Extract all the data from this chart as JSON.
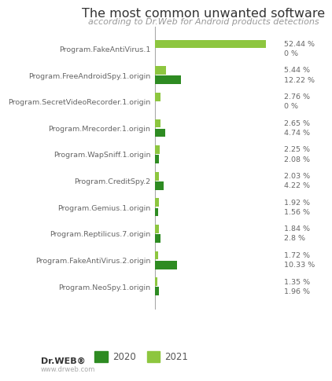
{
  "title": "The most common unwanted software",
  "subtitle": "according to Dr.Web for Android products detections",
  "categories": [
    "Program.FakeAntiVirus.1",
    "Program.FreeAndroidSpy.1.origin",
    "Program.SecretVideoRecorder.1.origin",
    "Program.Mrecorder.1.origin",
    "Program.WapSniff.1.origin",
    "Program.CreditSpy.2",
    "Program.Gemius.1.origin",
    "Program.Reptilicus.7.origin",
    "Program.FakeAntiVirus.2.origin",
    "Program.NeoSpy.1.origin"
  ],
  "values_2020": [
    0.0,
    12.22,
    0.0,
    4.74,
    2.08,
    4.22,
    1.56,
    2.8,
    10.33,
    1.96
  ],
  "values_2021": [
    52.44,
    5.44,
    2.76,
    2.65,
    2.25,
    2.03,
    1.92,
    1.84,
    1.72,
    1.35
  ],
  "labels_2020": [
    "0 %",
    "12.22 %",
    "0 %",
    "4.74 %",
    "2.08 %",
    "4.22 %",
    "1.56 %",
    "2.8 %",
    "10.33 %",
    "1.96 %"
  ],
  "labels_2021": [
    "52.44 %",
    "5.44 %",
    "2.76 %",
    "2.65 %",
    "2.25 %",
    "2.03 %",
    "1.92 %",
    "1.84 %",
    "1.72 %",
    "1.35 %"
  ],
  "color_2020": "#2E8B22",
  "color_2021": "#8DC63F",
  "background_color": "#FFFFFF",
  "bar_height": 0.32,
  "bar_gap": 0.04,
  "legend_2020": "2020",
  "legend_2021": "2021",
  "title_fontsize": 11.5,
  "subtitle_fontsize": 8,
  "label_fontsize": 6.8,
  "tick_fontsize": 6.8,
  "xlim_max": 62
}
